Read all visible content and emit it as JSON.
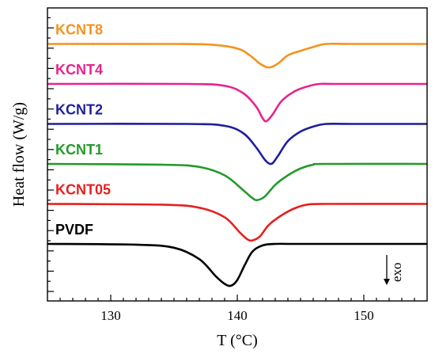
{
  "chart_data": {
    "type": "line",
    "title": "",
    "xlabel": "T (°C)",
    "ylabel": "Heat flow (W/g)",
    "xlim": [
      125,
      155
    ],
    "x_ticks": [
      "130",
      "140",
      "150"
    ],
    "x_tick_values": [
      130,
      140,
      150
    ],
    "y_ticks_labeled": false,
    "grid": false,
    "legend": "inline labels above each curve",
    "annotation": "exo",
    "annotation_arrow": "down",
    "series": [
      {
        "name": "KCNT8",
        "color": "#f5921e",
        "baseline_order": 6,
        "x": [
          125,
          135,
          138,
          140,
          141,
          141.8,
          142.5,
          143.2,
          144,
          145,
          146,
          147,
          149,
          155
        ],
        "y_offset": [
          0,
          0,
          -0.02,
          -0.12,
          -0.3,
          -0.52,
          -0.62,
          -0.52,
          -0.3,
          -0.18,
          -0.08,
          0,
          0,
          0
        ]
      },
      {
        "name": "KCNT4",
        "color": "#e6248f",
        "baseline_order": 5,
        "x": [
          125,
          136,
          139,
          140.5,
          141.5,
          142,
          142.3,
          142.8,
          143.5,
          144.5,
          145.5,
          146.5,
          148,
          155
        ],
        "y_offset": [
          0,
          0,
          -0.05,
          -0.25,
          -0.6,
          -0.9,
          -0.98,
          -0.8,
          -0.45,
          -0.2,
          -0.07,
          0,
          0,
          0
        ]
      },
      {
        "name": "KCNT2",
        "color": "#1f1f9c",
        "baseline_order": 4,
        "x": [
          125,
          136,
          139,
          140.5,
          141.5,
          142.2,
          142.7,
          143.2,
          144,
          145,
          146,
          147,
          149,
          155
        ],
        "y_offset": [
          0,
          0,
          -0.05,
          -0.25,
          -0.62,
          -0.95,
          -1.05,
          -0.85,
          -0.45,
          -0.2,
          -0.07,
          0,
          0,
          0
        ]
      },
      {
        "name": "KCNT1",
        "color": "#239a2a",
        "baseline_order": 3,
        "x": [
          125,
          134,
          137,
          139,
          140.5,
          141.2,
          141.6,
          142.2,
          143,
          144,
          145,
          146,
          147,
          155
        ],
        "y_offset": [
          0,
          -0.02,
          -0.08,
          -0.3,
          -0.7,
          -0.9,
          -0.95,
          -0.85,
          -0.55,
          -0.3,
          -0.12,
          -0.02,
          0,
          0
        ]
      },
      {
        "name": "KCNT05",
        "color": "#e5201e",
        "baseline_order": 2,
        "x": [
          125,
          134,
          137,
          139,
          140.2,
          140.8,
          141.2,
          141.8,
          142.5,
          143.5,
          144.5,
          145.5,
          147,
          155
        ],
        "y_offset": [
          0,
          -0.02,
          -0.1,
          -0.35,
          -0.75,
          -0.93,
          -0.96,
          -0.85,
          -0.55,
          -0.3,
          -0.12,
          -0.02,
          0,
          0
        ]
      },
      {
        "name": "PVDF",
        "color": "#000000",
        "baseline_order": 1,
        "x": [
          125,
          132,
          135,
          137,
          138.3,
          139,
          139.5,
          140,
          140.6,
          141.2,
          142,
          143,
          145,
          155
        ],
        "y_offset": [
          0,
          -0.02,
          -0.1,
          -0.4,
          -0.85,
          -1.05,
          -1.1,
          -0.95,
          -0.55,
          -0.2,
          -0.04,
          0,
          0,
          0
        ]
      }
    ]
  }
}
